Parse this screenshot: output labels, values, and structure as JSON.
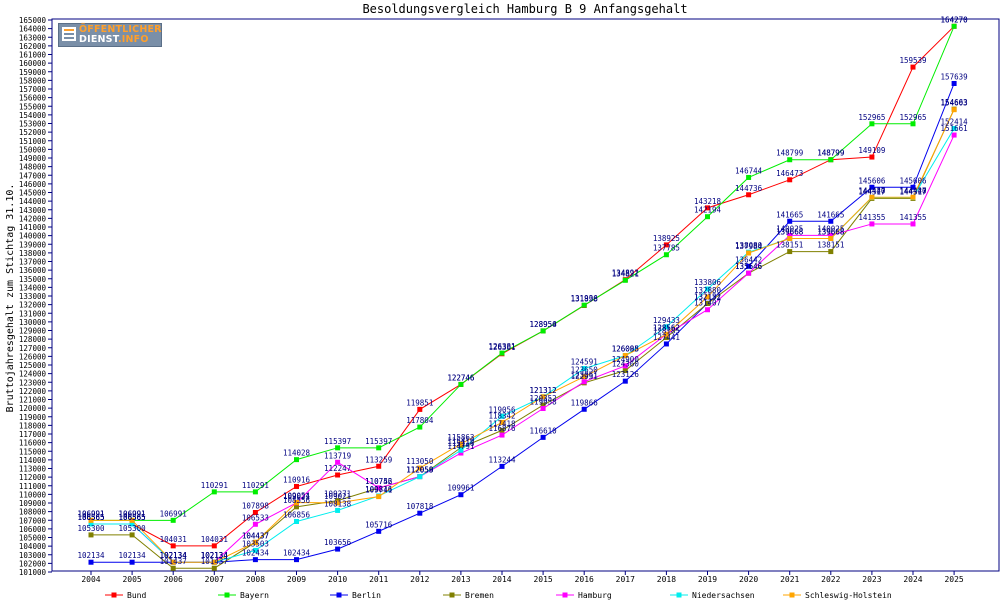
{
  "logo": {
    "line1": "ÖFFENTLICHER",
    "line2a": "DIENST",
    "line2b": ".INFO"
  },
  "chart_data": {
    "type": "line",
    "title": "Besoldungsvergleich Hamburg B 9 Anfangsgehalt",
    "xlabel": "",
    "ylabel": "Bruttojahresgehalt zum Stichtag 31.10.",
    "ylim": [
      101000,
      165000
    ],
    "ytick_step": 1000,
    "grid": false,
    "legend_position": "bottom",
    "categories": [
      "2004",
      "2005",
      "2006",
      "2007",
      "2008",
      "2009",
      "2010",
      "2011",
      "2012",
      "2013",
      "2014",
      "2015",
      "2016",
      "2017",
      "2018",
      "2019",
      "2020",
      "2021",
      "2022",
      "2023",
      "2024",
      "2025"
    ],
    "series": [
      {
        "name": "Bund",
        "color": "#ff0000",
        "values": [
          106565,
          106565,
          104031,
          104031,
          107898,
          110916,
          112247,
          113259,
          119851,
          122746,
          126301,
          128954,
          131898,
          134892,
          138925,
          143218,
          144736,
          146473,
          148799,
          149109,
          159539,
          164270
        ]
      },
      {
        "name": "Bayern",
        "color": "#00ee00",
        "values": [
          106991,
          106991,
          106991,
          110291,
          110291,
          114028,
          115397,
          115397,
          117804,
          122746,
          126381,
          128950,
          131936,
          134821,
          137785,
          142194,
          146744,
          148799,
          148799,
          152965,
          152965,
          164270
        ]
      },
      {
        "name": "Berlin",
        "color": "#0000ee",
        "values": [
          102134,
          102134,
          102134,
          102134,
          102434,
          102434,
          103656,
          105716,
          107818,
          109961,
          113244,
          116610,
          119866,
          123126,
          127441,
          132152,
          136442,
          141665,
          141665,
          145606,
          145606,
          157639
        ]
      },
      {
        "name": "Bremen",
        "color": "#808000",
        "values": [
          105300,
          105300,
          101437,
          101437,
          104437,
          108556,
          109271,
          110742,
          112059,
          115419,
          117418,
          120352,
          122931,
          124360,
          128185,
          132131,
          135646,
          138151,
          138151,
          144317,
          144317,
          154663
        ]
      },
      {
        "name": "Hamburg",
        "color": "#ff00ff",
        "values": [
          106565,
          106565,
          102134,
          102134,
          106533,
          109021,
          113719,
          110756,
          112059,
          114791,
          116876,
          119958,
          123061,
          124900,
          128562,
          131407,
          135646,
          140025,
          140025,
          141355,
          141355,
          151661
        ]
      },
      {
        "name": "Niedersachsen",
        "color": "#00eeee",
        "values": [
          106565,
          106565,
          102134,
          102134,
          103503,
          106856,
          108138,
          109816,
          112058,
          115116,
          119056,
          121312,
          124591,
          126088,
          129433,
          133806,
          138080,
          139668,
          139668,
          144420,
          144420,
          152414
        ]
      },
      {
        "name": "Schleswig-Holstein",
        "color": "#ffa500",
        "values": [
          106991,
          106991,
          102134,
          102134,
          104437,
          109054,
          109021,
          109741,
          113050,
          115863,
          118342,
          121312,
          123650,
          126095,
          128562,
          132880,
          137984,
          139668,
          139668,
          144447,
          144447,
          154603
        ]
      }
    ]
  }
}
